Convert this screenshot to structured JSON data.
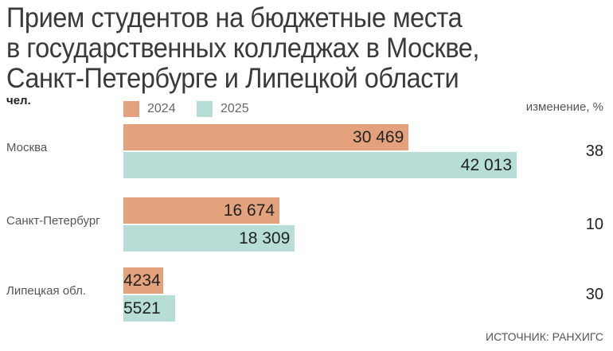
{
  "chart_data": {
    "type": "bar",
    "orientation": "horizontal",
    "title": "Прием студентов на бюджетные места в государственных колледжах в Москве, Санкт-Петербурге и Липецкой области",
    "unit_label": "чел.",
    "categories": [
      "Москва",
      "Санкт-Петербург",
      "Липецкая обл."
    ],
    "series": [
      {
        "name": "2024",
        "color": "#e3a27c",
        "values": [
          30469,
          16674,
          4234
        ],
        "labels": [
          "30 469",
          "16 674",
          "4234"
        ]
      },
      {
        "name": "2025",
        "color": "#b6ddd6",
        "values": [
          42013,
          18309,
          5521
        ],
        "labels": [
          "42 013",
          "18 309",
          "5521"
        ]
      }
    ],
    "change_header": "изменение, %",
    "change": [
      "38",
      "10",
      "30"
    ],
    "source": "ИСТОЧНИК: РАНХИГС",
    "grid": false,
    "legend_position": "top"
  }
}
